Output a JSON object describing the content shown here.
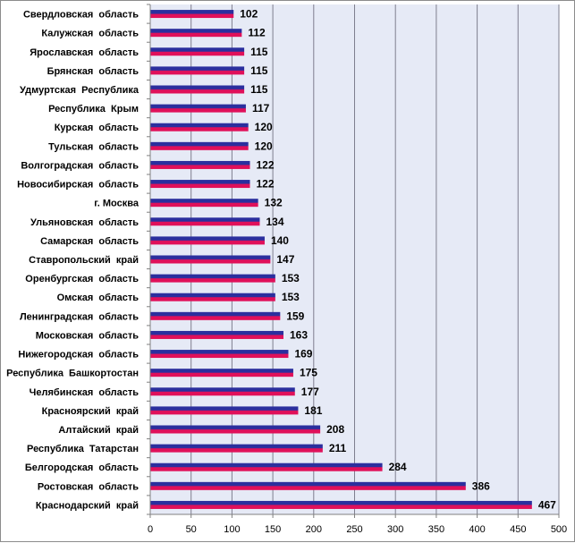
{
  "chart_data": {
    "type": "bar",
    "orientation": "horizontal",
    "title": "",
    "xlabel": "",
    "ylabel": "",
    "xlim": [
      0,
      500
    ],
    "xticks": [
      0,
      50,
      100,
      150,
      200,
      250,
      300,
      350,
      400,
      450,
      500
    ],
    "grid": true,
    "legend": "none",
    "categories": [
      "Свердловская  область",
      "Калужская  область",
      "Ярославская  область",
      "Брянская  область",
      "Удмуртская  Республика",
      "Республика  Крым",
      "Курская  область",
      "Тульская  область",
      "Волгоградская  область",
      "Новосибирская  область",
      "г. Москва",
      "Ульяновская  область",
      "Самарская  область",
      "Ставропольский  край",
      "Оренбургская  область",
      "Омская  область",
      "Ленинградская  область",
      "Московская  область",
      "Нижегородская  область",
      "Республика  Башкортостан",
      "Челябинская  область",
      "Красноярский  край",
      "Алтайский  край",
      "Республика  Татарстан",
      "Белгородская  область",
      "Ростовская  область",
      "Краснодарский  край"
    ],
    "values": [
      102,
      112,
      115,
      115,
      115,
      117,
      120,
      120,
      122,
      122,
      132,
      134,
      140,
      147,
      153,
      153,
      159,
      163,
      169,
      175,
      177,
      181,
      208,
      211,
      284,
      386,
      467
    ],
    "colors": {
      "plot_background": "#e6eaf6",
      "grid": "#7f7f8f",
      "bar_top": "#2b2f9e",
      "bar_bottom": "#e0105a",
      "axis": "#808080"
    }
  }
}
